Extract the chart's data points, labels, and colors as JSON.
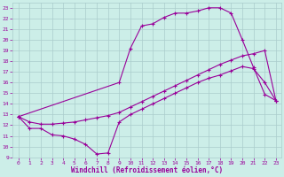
{
  "title": "",
  "xlabel": "Windchill (Refroidissement éolien,°C)",
  "bg_color": "#cceee8",
  "grid_color": "#aacccc",
  "line_color": "#990099",
  "xlim": [
    -0.5,
    23.5
  ],
  "ylim": [
    9,
    23.5
  ],
  "xticks": [
    0,
    1,
    2,
    3,
    4,
    5,
    6,
    7,
    8,
    9,
    10,
    11,
    12,
    13,
    14,
    15,
    16,
    17,
    18,
    19,
    20,
    21,
    22,
    23
  ],
  "yticks": [
    9,
    10,
    11,
    12,
    13,
    14,
    15,
    16,
    17,
    18,
    19,
    20,
    21,
    22,
    23
  ],
  "line1_x": [
    0,
    1,
    2,
    3,
    4,
    5,
    6,
    7,
    8,
    9,
    10,
    11,
    12,
    13,
    14,
    15,
    16,
    17,
    18,
    19,
    20,
    21,
    22,
    23
  ],
  "line1_y": [
    12.8,
    11.7,
    11.7,
    11.1,
    11.0,
    10.7,
    10.2,
    9.3,
    9.4,
    12.3,
    13.0,
    13.5,
    14.0,
    14.5,
    15.0,
    15.5,
    16.0,
    16.4,
    16.7,
    17.1,
    17.5,
    17.3,
    16.0,
    14.3
  ],
  "line2_x": [
    0,
    1,
    2,
    3,
    4,
    5,
    6,
    7,
    8,
    9,
    10,
    11,
    12,
    13,
    14,
    15,
    16,
    17,
    18,
    19,
    20,
    21,
    22,
    23
  ],
  "line2_y": [
    12.8,
    12.3,
    12.1,
    12.1,
    12.2,
    12.3,
    12.5,
    12.7,
    12.9,
    13.2,
    13.7,
    14.2,
    14.7,
    15.2,
    15.7,
    16.2,
    16.7,
    17.2,
    17.7,
    18.1,
    18.5,
    18.7,
    19.0,
    14.3
  ],
  "line3_x": [
    0,
    9,
    10,
    11,
    12,
    13,
    14,
    15,
    16,
    17,
    18,
    19,
    20,
    21,
    22,
    23
  ],
  "line3_y": [
    12.8,
    16.0,
    19.2,
    21.3,
    21.5,
    22.1,
    22.5,
    22.5,
    22.7,
    23.0,
    23.0,
    22.5,
    20.0,
    17.4,
    14.9,
    14.3
  ]
}
